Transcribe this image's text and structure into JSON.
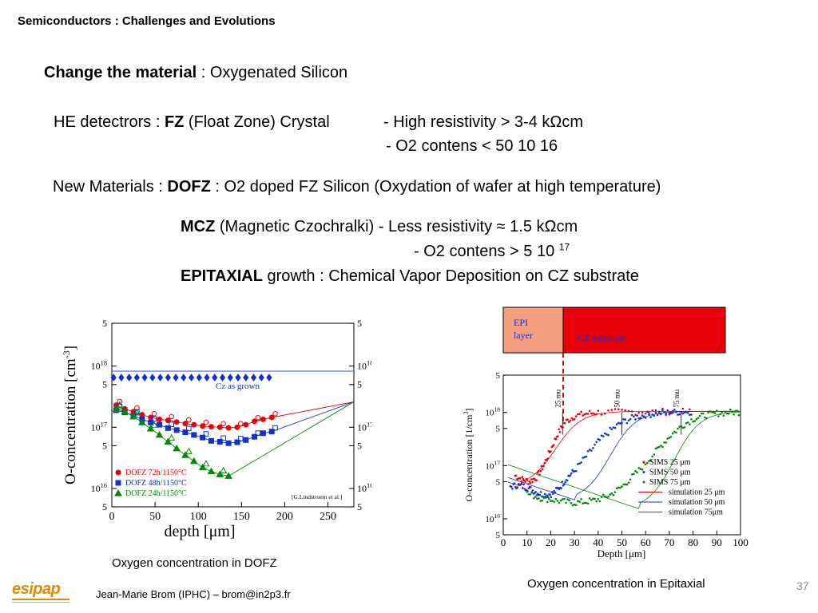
{
  "header": {
    "title": "Semiconductors : Challenges and Evolutions"
  },
  "body": {
    "change_bold": "Change the material",
    "change_rest": " : Oxygenated Silicon",
    "he_pre": "HE detectrors : ",
    "he_bold": "FZ",
    "he_rest": " (Float Zone) Crystal",
    "he_prop1": "- High resistivity  > 3-4 kΩcm",
    "he_prop2": "- O2 contens < 50 10 16",
    "new_pre": "New Materials : ",
    "new_bold": "DOFZ",
    "new_rest": " : O2 doped FZ Silicon (Oxydation of wafer at high temperature)",
    "mcz_bold": "MCZ",
    "mcz_rest": " (Magnetic Czochralki)  - Less resistivity ≈ 1.5 kΩcm",
    "mcz_prop2": "- O2 contens > 5 10",
    "mcz_prop2_sup": "17",
    "epi_bold": "EPITAXIAL",
    "epi_rest": " growth : Chemical Vapor Deposition on CZ substrate"
  },
  "captions": {
    "dofz": "Oxygen concentration in DOFZ",
    "epi": "Oxygen concentration in Epitaxial"
  },
  "footer": {
    "logo_text": "esipap",
    "author": "Jean-Marie Brom (IPHC) – brom@in2p3.fr",
    "page": "37"
  },
  "colors": {
    "red": "#e8000b",
    "blue": "#1030d0",
    "green": "#008a00",
    "epi_layer": "#f4a080"
  },
  "chart_data": [
    {
      "type": "scatter",
      "ylabel": "O-concentration [cm-3]",
      "xlabel": "depth [μm]",
      "x_ticks": [
        "0",
        "50",
        "100",
        "150",
        "200",
        "250"
      ],
      "y_ticks_left": [
        "5",
        "10^18",
        "5",
        "10^17",
        "5",
        "10^16",
        "5"
      ],
      "y_ticks_right": [
        "5",
        "10^18",
        "5",
        "10^17",
        "5",
        "10^16",
        "5"
      ],
      "xlim": [
        0,
        280
      ],
      "ylim_log10": [
        15.7,
        18.7
      ],
      "yscale": "log",
      "annotation_cz": "Cz as grown",
      "annotation_ref": "[G.Lindstroem et al.]",
      "legend_position": "bottom-left",
      "cz_level": 6.5e+17,
      "series": [
        {
          "name": "DOFZ 72h/1150°C",
          "marker": "circle",
          "color": "#e8000b",
          "x": [
            5,
            15,
            25,
            35,
            45,
            55,
            65,
            75,
            85,
            95,
            105,
            115,
            125,
            135,
            145,
            155,
            165,
            175,
            185
          ],
          "y": [
            2.3e+17,
            2e+17,
            1.8e+17,
            1.6e+17,
            1.45e+17,
            1.35e+17,
            1.3e+17,
            1.22e+17,
            1.15e+17,
            1.1e+17,
            1.05e+17,
            1.02e+17,
            1e+17,
            9.8e+16,
            1e+17,
            1.1e+17,
            1.25e+17,
            1.35e+17,
            1.45e+17
          ]
        },
        {
          "name": "DOFZ 48h/1150°C",
          "marker": "square",
          "color": "#1030d0",
          "x": [
            5,
            15,
            25,
            35,
            45,
            55,
            65,
            75,
            85,
            95,
            105,
            115,
            125,
            135,
            145,
            155,
            165,
            175,
            185
          ],
          "y": [
            1.9e+17,
            1.75e+17,
            1.55e+17,
            1.35e+17,
            1.2e+17,
            1.1e+17,
            9.7e+16,
            9e+16,
            8.3e+16,
            7.5e+16,
            6.8e+16,
            6e+16,
            5.8e+16,
            5.5e+16,
            5.7e+16,
            6.2e+16,
            7e+16,
            8e+16,
            8.5e+16
          ]
        },
        {
          "name": "DOFZ 24h/1150°C",
          "marker": "triangle",
          "color": "#008a00",
          "x": [
            5,
            15,
            25,
            35,
            45,
            55,
            65,
            75,
            85,
            95,
            105,
            115,
            125,
            135
          ],
          "y": [
            2e+17,
            1.8e+17,
            1.5e+17,
            1.2e+17,
            9.5e+16,
            7.5e+16,
            5.8e+16,
            4.5e+16,
            3.5e+16,
            2.8e+16,
            2.2e+16,
            1.9e+16,
            1.7e+16,
            1.6e+16
          ]
        }
      ]
    },
    {
      "type": "scatter",
      "ylabel": "O-concentration [1/cm3]",
      "xlabel": "Depth [μm]",
      "x_ticks": [
        "0",
        "10",
        "20",
        "30",
        "40",
        "50",
        "60",
        "70",
        "80",
        "90",
        "100"
      ],
      "y_ticks": [
        "5",
        "10^18",
        "5",
        "10^17",
        "5",
        "10^16",
        "5"
      ],
      "xlim": [
        0,
        100
      ],
      "ylim_log10": [
        15.7,
        18.7
      ],
      "yscale": "log",
      "depth_labels": [
        "25 mu",
        "50 mu",
        "75 mu"
      ],
      "epi_box": {
        "epi_label_line1": "EPI",
        "epi_label_line2": "layer",
        "substrate_label": "CZ substrate"
      },
      "legend_position": "center-right",
      "legend": [
        "SIMS 25 μm",
        "SIMS 50 μm",
        "SIMS 75 μm",
        "simulation 25 μm",
        "simulation 50 μm",
        "simulation 75μm"
      ],
      "series": [
        {
          "name": "SIMS 25 μm",
          "color": "#e8000b",
          "x": [
            5,
            8,
            11,
            14,
            17,
            20,
            23,
            26,
            30,
            35,
            40,
            50,
            60,
            70,
            80
          ],
          "y": [
            6.5e+16,
            5.5e+16,
            5e+16,
            6e+16,
            1e+17,
            2e+17,
            4e+17,
            6.5e+17,
            8.5e+17,
            9.5e+17,
            1e+18,
            1.02e+18,
            1.03e+18,
            1.03e+18,
            1.03e+18
          ]
        },
        {
          "name": "SIMS 50 μm",
          "color": "#1030d0",
          "x": [
            3,
            6,
            9,
            12,
            15,
            18,
            21,
            24,
            27,
            30,
            35,
            40,
            45,
            50,
            55,
            60,
            65,
            70,
            75,
            80
          ],
          "y": [
            4e+16,
            4.3e+16,
            4e+16,
            3.5e+16,
            3e+16,
            2.8e+16,
            3e+16,
            4e+16,
            6e+16,
            8e+16,
            1.5e+17,
            2.8e+17,
            4.5e+17,
            6.5e+17,
            8e+17,
            9e+17,
            9.6e+17,
            1e+18,
            1.02e+18,
            1.03e+18
          ]
        },
        {
          "name": "SIMS 75 μm",
          "color": "#008a00",
          "x": [
            10,
            15,
            20,
            25,
            30,
            35,
            40,
            45,
            50,
            55,
            60,
            65,
            70,
            75,
            80,
            85,
            90,
            95,
            100
          ],
          "y": [
            3e+16,
            2.5e+16,
            2.3e+16,
            2.1e+16,
            2e+16,
            2.1e+16,
            2.3e+16,
            2.8e+16,
            4e+16,
            6.5e+16,
            1.1e+17,
            2e+17,
            3.5e+17,
            5.5e+17,
            7.5e+17,
            8.8e+17,
            9.6e+17,
            1e+18,
            1.02e+18
          ]
        }
      ]
    }
  ]
}
